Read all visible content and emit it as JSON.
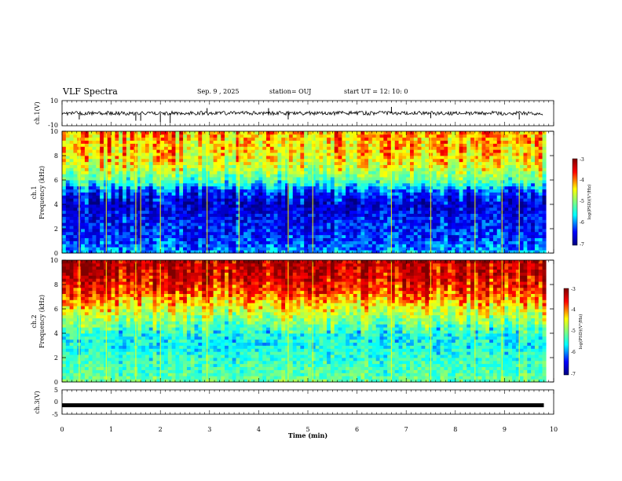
{
  "header": {
    "title": "VLF Spectra",
    "date": "Sep. 9 , 2025",
    "station": "station= OUJ",
    "start_ut": "start UT =  12: 10: 0"
  },
  "chart_data": [
    {
      "type": "line",
      "panel": "ch1-waveform",
      "ylabel": "ch.1(V)",
      "ylim": [
        -10,
        10
      ],
      "yticks": [
        "10",
        "-10"
      ],
      "x": [
        0,
        0.35,
        0.35,
        1.5,
        1.5,
        1.6,
        1.6,
        2.0,
        2.0,
        2.2,
        2.2,
        2.95,
        2.95,
        4.2,
        4.2,
        4.6,
        4.6,
        5.0,
        6.7,
        6.7,
        7.5,
        7.5,
        9.3,
        9.3,
        9.8
      ],
      "values": [
        0,
        0,
        -5,
        -6,
        0,
        -6,
        0,
        0,
        -7,
        -8,
        0,
        4,
        0,
        0,
        4,
        0,
        -5,
        0,
        0,
        5,
        0,
        -4,
        0,
        -5,
        0
      ]
    },
    {
      "type": "heatmap",
      "panel": "ch1-spectrogram",
      "ylabel": "Frequency (kHz)",
      "channel_label": "ch.1",
      "xlim": [
        0,
        10
      ],
      "ylim": [
        0,
        10
      ],
      "yticks": [
        "0",
        "2",
        "4",
        "6",
        "8",
        "10"
      ],
      "colorbar": {
        "label": "log(PSD)(V²/Hz)",
        "range": [
          -7,
          -3
        ],
        "ticks": [
          "-3",
          "-4",
          "-5",
          "-6",
          "-7"
        ]
      },
      "freq_profile_kHz": [
        0,
        1,
        2,
        3,
        4,
        5,
        6,
        7,
        8,
        9,
        10
      ],
      "log_psd_profile": [
        -5.8,
        -6.2,
        -6.3,
        -6.4,
        -6.6,
        -6.2,
        -5.2,
        -4.6,
        -4.3,
        -4.2,
        -4.1
      ],
      "impulse_times_min": [
        0.35,
        0.9,
        1.5,
        1.6,
        2.0,
        2.95,
        3.6,
        4.6,
        5.1,
        6.7,
        7.5,
        8.4,
        8.95,
        9.3
      ]
    },
    {
      "type": "heatmap",
      "panel": "ch2-spectrogram",
      "ylabel": "Frequency (kHz)",
      "channel_label": "ch.2",
      "xlim": [
        0,
        10
      ],
      "ylim": [
        0,
        10
      ],
      "yticks": [
        "0",
        "2",
        "4",
        "6",
        "8",
        "10"
      ],
      "colorbar": {
        "label": "log(PSD)(V²/Hz)",
        "range": [
          -7,
          -3
        ],
        "ticks": [
          "-3",
          "-4",
          "-5",
          "-6",
          "-7"
        ]
      },
      "freq_profile_kHz": [
        0,
        1,
        2,
        3,
        4,
        5,
        6,
        7,
        8,
        9,
        10
      ],
      "log_psd_profile": [
        -5.1,
        -5.3,
        -5.4,
        -5.6,
        -5.5,
        -5.0,
        -4.5,
        -4.0,
        -3.6,
        -3.4,
        -3.3
      ],
      "impulse_times_min": [
        0.35,
        0.9,
        1.5,
        2.0,
        2.95,
        4.6,
        5.1,
        6.7,
        7.5,
        8.4,
        8.95,
        9.3
      ]
    },
    {
      "type": "line",
      "panel": "ch3-waveform",
      "ylabel": "ch.3(V)",
      "ylim": [
        -5,
        5
      ],
      "yticks": [
        "5",
        "0",
        "-5"
      ],
      "x": [
        0,
        9.8
      ],
      "values": [
        -1.2,
        -1.2
      ]
    }
  ],
  "x_axis": {
    "label": "Time (min)",
    "xlim": [
      0,
      10
    ],
    "ticks": [
      "0",
      "1",
      "2",
      "3",
      "4",
      "5",
      "6",
      "7",
      "8",
      "9",
      "10"
    ]
  },
  "colors": {
    "jet": [
      "#00007f",
      "#0000ff",
      "#00ffff",
      "#7fff7f",
      "#ffff00",
      "#ff0000",
      "#7f0000"
    ]
  }
}
